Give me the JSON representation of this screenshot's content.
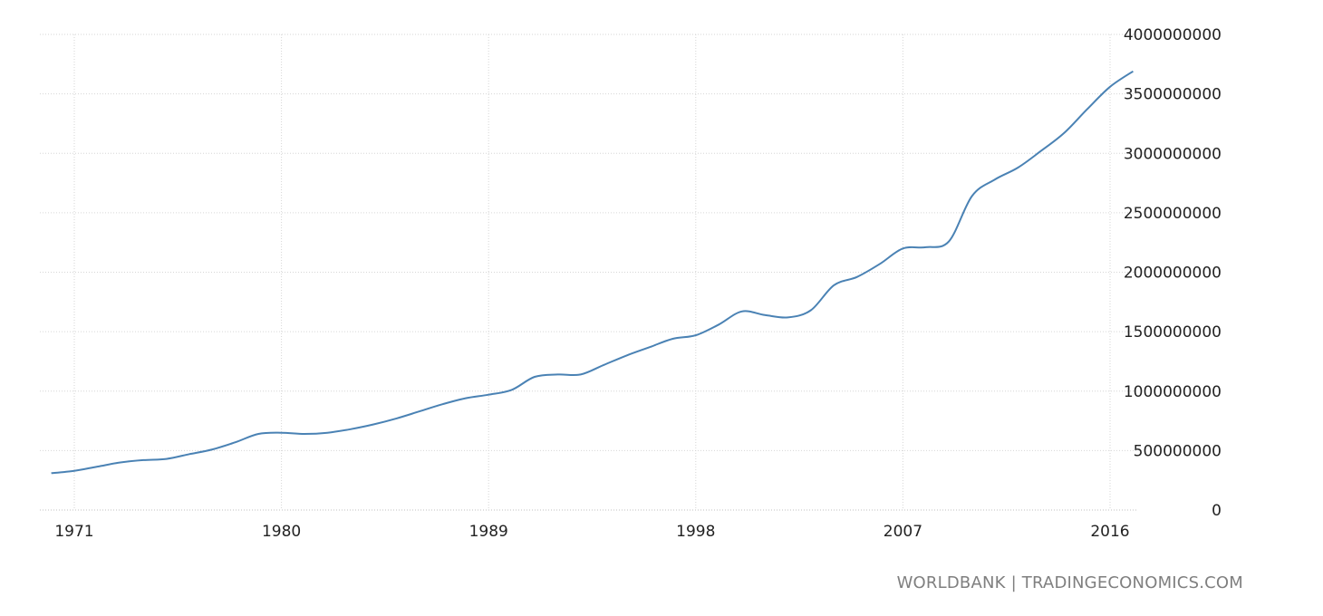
{
  "source": "WORLDBANK | TRADINGECONOMICS.COM",
  "colors": {
    "series": "#4a82b4",
    "grid": "#d6d6d6",
    "text": "#222222",
    "source": "#7f7f7f"
  },
  "chart_data": {
    "type": "line",
    "title": "",
    "xlabel": "",
    "ylabel": "",
    "grid": true,
    "legend": "none",
    "y_axis_side": "right",
    "xlim": [
      1970,
      2017
    ],
    "ylim": [
      0,
      4000000000
    ],
    "x_ticks": [
      1971,
      1980,
      1989,
      1998,
      2007,
      2016
    ],
    "x_tick_labels": [
      "1971",
      "1980",
      "1989",
      "1998",
      "2007",
      "2016"
    ],
    "y_ticks": [
      0,
      500000000,
      1000000000,
      1500000000,
      2000000000,
      2500000000,
      3000000000,
      3500000000,
      4000000000
    ],
    "y_tick_labels": [
      "0",
      "500000000",
      "1000000000",
      "1500000000",
      "2000000000",
      "2500000000",
      "3000000000",
      "3500000000",
      "4000000000"
    ],
    "series": [
      {
        "x": [
          1970,
          1971,
          1972,
          1973,
          1974,
          1975,
          1976,
          1977,
          1978,
          1979,
          1980,
          1981,
          1982,
          1983,
          1984,
          1985,
          1986,
          1987,
          1988,
          1989,
          1990,
          1991,
          1992,
          1993,
          1994,
          1995,
          1996,
          1997,
          1998,
          1999,
          2000,
          2001,
          2002,
          2003,
          2004,
          2005,
          2006,
          2007,
          2008,
          2009,
          2010,
          2011,
          2012,
          2013,
          2014,
          2015,
          2016,
          2017
        ],
        "y": [
          310000000,
          330000000,
          365000000,
          400000000,
          420000000,
          430000000,
          470000000,
          510000000,
          570000000,
          640000000,
          650000000,
          640000000,
          650000000,
          680000000,
          720000000,
          770000000,
          830000000,
          890000000,
          940000000,
          970000000,
          1010000000,
          1120000000,
          1140000000,
          1140000000,
          1220000000,
          1300000000,
          1370000000,
          1440000000,
          1470000000,
          1560000000,
          1670000000,
          1640000000,
          1620000000,
          1680000000,
          1890000000,
          1960000000,
          2070000000,
          2200000000,
          2210000000,
          2260000000,
          2640000000,
          2780000000,
          2880000000,
          3020000000,
          3170000000,
          3370000000,
          3560000000,
          3690000000
        ]
      }
    ]
  }
}
